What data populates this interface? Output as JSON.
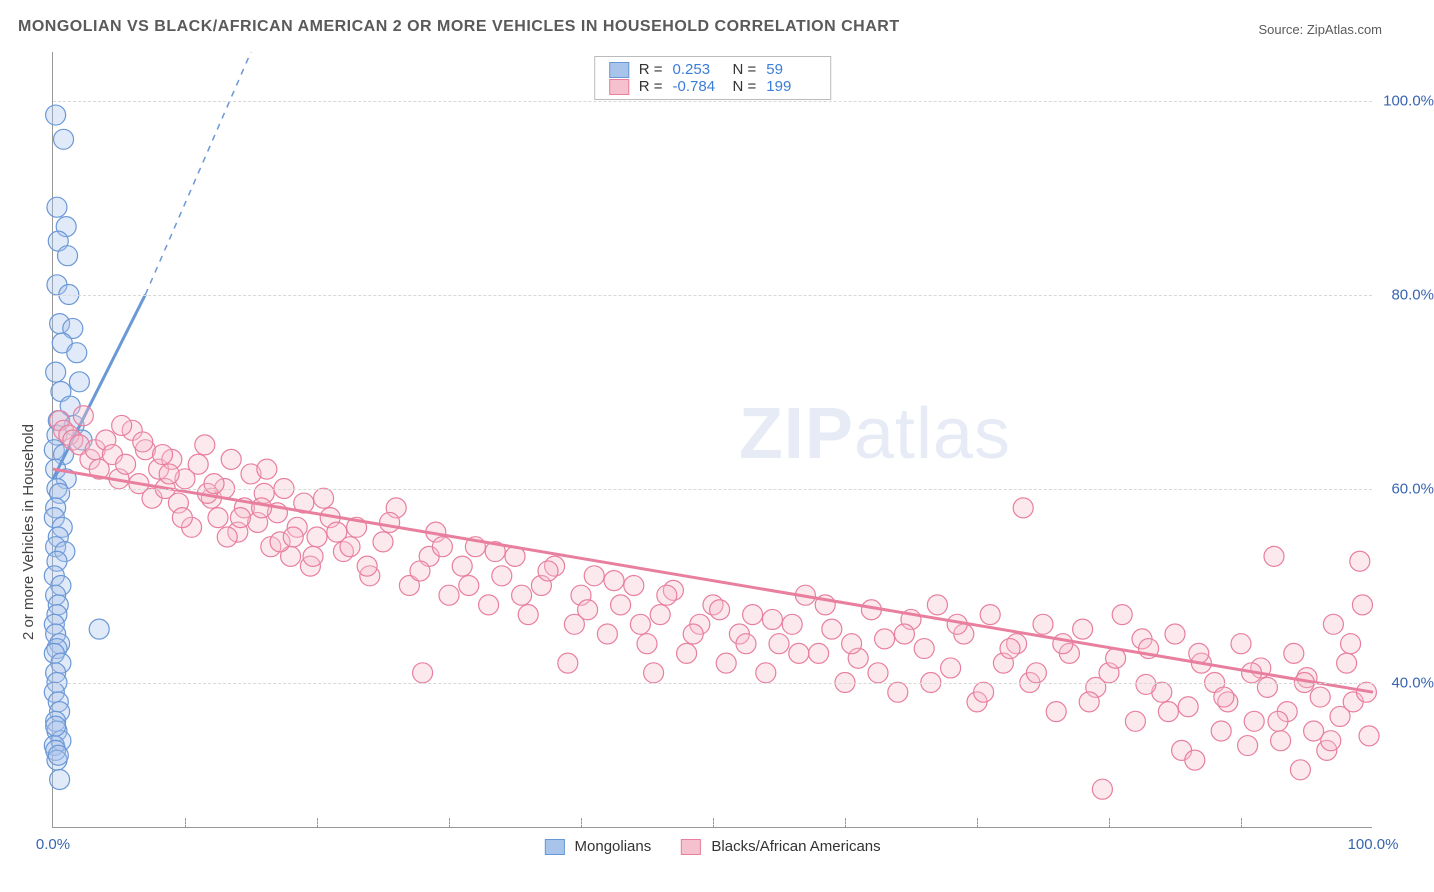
{
  "title": "MONGOLIAN VS BLACK/AFRICAN AMERICAN 2 OR MORE VEHICLES IN HOUSEHOLD CORRELATION CHART",
  "source": "Source: ZipAtlas.com",
  "ylabel": "2 or more Vehicles in Household",
  "watermark": {
    "bold": "ZIP",
    "thin": "atlas"
  },
  "chart": {
    "type": "scatter",
    "background_color": "#ffffff",
    "grid_color": "#d8d8d8",
    "axis_color": "#999999",
    "xlim": [
      0,
      100
    ],
    "ylim": [
      25,
      105
    ],
    "ytick_labels": [
      "40.0%",
      "60.0%",
      "80.0%",
      "100.0%"
    ],
    "ytick_values": [
      40,
      60,
      80,
      100
    ],
    "xtick_labels": [
      "0.0%",
      "100.0%"
    ],
    "xtick_values": [
      0,
      100
    ],
    "xtick_minor": [
      10,
      20,
      30,
      40,
      50,
      60,
      70,
      80,
      90
    ],
    "label_color": "#3864b0",
    "label_fontsize": 15,
    "title_fontsize": 16,
    "marker_radius": 10,
    "marker_opacity": 0.35,
    "series": [
      {
        "name": "Mongolians",
        "color_fill": "#a9c4ea",
        "color_stroke": "#6a98d6",
        "R": "0.253",
        "N": "59",
        "trend": {
          "x1": 0,
          "y1": 61,
          "x2": 7,
          "y2": 80,
          "dash_to_x": 15,
          "dash_to_y": 105
        },
        "points": [
          [
            0.2,
            98.5
          ],
          [
            0.8,
            96
          ],
          [
            0.3,
            89
          ],
          [
            1.0,
            87
          ],
          [
            0.4,
            85.5
          ],
          [
            1.1,
            84
          ],
          [
            0.3,
            81
          ],
          [
            1.2,
            80
          ],
          [
            0.5,
            77
          ],
          [
            1.5,
            76.5
          ],
          [
            0.7,
            75
          ],
          [
            1.8,
            74
          ],
          [
            0.2,
            72
          ],
          [
            2.0,
            71
          ],
          [
            0.6,
            70
          ],
          [
            1.3,
            68.5
          ],
          [
            0.4,
            67
          ],
          [
            1.6,
            66.5
          ],
          [
            0.3,
            65.5
          ],
          [
            2.2,
            65
          ],
          [
            0.1,
            64
          ],
          [
            0.8,
            63.5
          ],
          [
            0.2,
            62
          ],
          [
            1.0,
            61
          ],
          [
            0.3,
            60
          ],
          [
            0.5,
            59.5
          ],
          [
            0.2,
            58
          ],
          [
            0.1,
            57
          ],
          [
            0.7,
            56
          ],
          [
            0.4,
            55
          ],
          [
            0.2,
            54
          ],
          [
            0.9,
            53.5
          ],
          [
            0.3,
            52.5
          ],
          [
            0.1,
            51
          ],
          [
            0.6,
            50
          ],
          [
            0.2,
            49
          ],
          [
            0.4,
            48
          ],
          [
            0.3,
            47
          ],
          [
            0.1,
            46
          ],
          [
            3.5,
            45.5
          ],
          [
            0.2,
            45
          ],
          [
            0.5,
            44
          ],
          [
            0.3,
            43.5
          ],
          [
            0.1,
            43
          ],
          [
            0.6,
            42
          ],
          [
            0.2,
            41
          ],
          [
            0.3,
            40
          ],
          [
            0.1,
            39
          ],
          [
            0.4,
            38
          ],
          [
            0.5,
            37
          ],
          [
            0.2,
            36
          ],
          [
            0.3,
            35
          ],
          [
            0.6,
            34
          ],
          [
            0.1,
            33.5
          ],
          [
            0.2,
            33
          ],
          [
            0.3,
            32
          ],
          [
            0.5,
            30
          ],
          [
            0.2,
            35.5
          ],
          [
            0.4,
            32.5
          ]
        ]
      },
      {
        "name": "Blacks/African Americans",
        "color_fill": "#f6c1cf",
        "color_stroke": "#e87f9e",
        "R": "-0.784",
        "N": "199",
        "trend": {
          "x1": 0,
          "y1": 62,
          "x2": 100,
          "y2": 39
        },
        "points": [
          [
            0.5,
            67
          ],
          [
            0.8,
            66
          ],
          [
            1.2,
            65.5
          ],
          [
            1.5,
            65
          ],
          [
            2,
            64.5
          ],
          [
            2.3,
            67.5
          ],
          [
            2.8,
            63
          ],
          [
            3.2,
            64
          ],
          [
            3.5,
            62
          ],
          [
            4,
            65
          ],
          [
            4.5,
            63.5
          ],
          [
            5,
            61
          ],
          [
            5.5,
            62.5
          ],
          [
            6,
            66
          ],
          [
            6.5,
            60.5
          ],
          [
            7,
            64
          ],
          [
            7.5,
            59
          ],
          [
            8,
            62
          ],
          [
            8.5,
            60
          ],
          [
            9,
            63
          ],
          [
            9.5,
            58.5
          ],
          [
            10,
            61
          ],
          [
            10.5,
            56
          ],
          [
            11,
            62.5
          ],
          [
            11.5,
            64.5
          ],
          [
            12,
            59
          ],
          [
            12.5,
            57
          ],
          [
            13,
            60
          ],
          [
            13.5,
            63
          ],
          [
            14,
            55.5
          ],
          [
            14.5,
            58
          ],
          [
            15,
            61.5
          ],
          [
            15.5,
            56.5
          ],
          [
            16,
            59.5
          ],
          [
            16.5,
            54
          ],
          [
            17,
            57.5
          ],
          [
            17.5,
            60
          ],
          [
            18,
            53
          ],
          [
            18.5,
            56
          ],
          [
            19,
            58.5
          ],
          [
            19.5,
            52
          ],
          [
            20,
            55
          ],
          [
            21,
            57
          ],
          [
            22,
            53.5
          ],
          [
            23,
            56
          ],
          [
            24,
            51
          ],
          [
            25,
            54.5
          ],
          [
            26,
            58
          ],
          [
            27,
            50
          ],
          [
            28,
            41
          ],
          [
            28.5,
            53
          ],
          [
            29,
            55.5
          ],
          [
            30,
            49
          ],
          [
            31,
            52
          ],
          [
            32,
            54
          ],
          [
            33,
            48
          ],
          [
            34,
            51
          ],
          [
            35,
            53
          ],
          [
            36,
            47
          ],
          [
            37,
            50
          ],
          [
            38,
            52
          ],
          [
            39,
            42
          ],
          [
            39.5,
            46
          ],
          [
            40,
            49
          ],
          [
            41,
            51
          ],
          [
            42,
            45
          ],
          [
            43,
            48
          ],
          [
            44,
            50
          ],
          [
            45,
            44
          ],
          [
            45.5,
            41
          ],
          [
            46,
            47
          ],
          [
            47,
            49.5
          ],
          [
            48,
            43
          ],
          [
            49,
            46
          ],
          [
            50,
            48
          ],
          [
            51,
            42
          ],
          [
            52,
            45
          ],
          [
            53,
            47
          ],
          [
            54,
            41
          ],
          [
            55,
            44
          ],
          [
            56,
            46
          ],
          [
            57,
            49
          ],
          [
            58,
            43
          ],
          [
            59,
            45.5
          ],
          [
            60,
            40
          ],
          [
            61,
            42.5
          ],
          [
            62,
            47.5
          ],
          [
            63,
            44.5
          ],
          [
            64,
            39
          ],
          [
            65,
            46.5
          ],
          [
            66,
            43.5
          ],
          [
            67,
            48
          ],
          [
            68,
            41.5
          ],
          [
            69,
            45
          ],
          [
            70,
            38
          ],
          [
            71,
            47
          ],
          [
            72,
            42
          ],
          [
            73,
            44
          ],
          [
            73.5,
            58
          ],
          [
            74,
            40
          ],
          [
            75,
            46
          ],
          [
            76,
            37
          ],
          [
            77,
            43
          ],
          [
            78,
            45.5
          ],
          [
            79,
            39.5
          ],
          [
            80,
            41
          ],
          [
            81,
            47
          ],
          [
            82,
            36
          ],
          [
            82.5,
            44.5
          ],
          [
            83,
            43.5
          ],
          [
            84,
            39
          ],
          [
            85,
            45
          ],
          [
            85.5,
            33
          ],
          [
            86,
            37.5
          ],
          [
            86.5,
            32
          ],
          [
            87,
            42
          ],
          [
            88,
            40
          ],
          [
            88.5,
            35
          ],
          [
            89,
            38
          ],
          [
            90,
            44
          ],
          [
            90.5,
            33.5
          ],
          [
            91,
            36
          ],
          [
            91.5,
            41.5
          ],
          [
            92,
            39.5
          ],
          [
            92.5,
            53
          ],
          [
            93,
            34
          ],
          [
            93.5,
            37
          ],
          [
            94,
            43
          ],
          [
            94.5,
            31
          ],
          [
            95,
            40.5
          ],
          [
            95.5,
            35
          ],
          [
            96,
            38.5
          ],
          [
            96.5,
            33
          ],
          [
            97,
            46
          ],
          [
            97.5,
            36.5
          ],
          [
            98,
            42
          ],
          [
            98.5,
            38
          ],
          [
            99,
            52.5
          ],
          [
            99.2,
            48
          ],
          [
            99.5,
            39
          ],
          [
            99.7,
            34.5
          ],
          [
            8.3,
            63.5
          ],
          [
            9.8,
            57
          ],
          [
            11.7,
            59.5
          ],
          [
            13.2,
            55
          ],
          [
            15.8,
            58
          ],
          [
            17.2,
            54.5
          ],
          [
            19.7,
            53
          ],
          [
            21.5,
            55.5
          ],
          [
            23.8,
            52
          ],
          [
            25.5,
            56.5
          ],
          [
            27.8,
            51.5
          ],
          [
            29.5,
            54
          ],
          [
            31.5,
            50
          ],
          [
            33.5,
            53.5
          ],
          [
            35.5,
            49
          ],
          [
            37.5,
            51.5
          ],
          [
            40.5,
            47.5
          ],
          [
            42.5,
            50.5
          ],
          [
            44.5,
            46
          ],
          [
            46.5,
            49
          ],
          [
            48.5,
            45
          ],
          [
            50.5,
            47.5
          ],
          [
            52.5,
            44
          ],
          [
            54.5,
            46.5
          ],
          [
            56.5,
            43
          ],
          [
            58.5,
            48
          ],
          [
            60.5,
            44
          ],
          [
            62.5,
            41
          ],
          [
            64.5,
            45
          ],
          [
            66.5,
            40
          ],
          [
            68.5,
            46
          ],
          [
            70.5,
            39
          ],
          [
            72.5,
            43.5
          ],
          [
            74.5,
            41
          ],
          [
            76.5,
            44
          ],
          [
            78.5,
            38
          ],
          [
            80.5,
            42.5
          ],
          [
            82.8,
            39.8
          ],
          [
            84.5,
            37
          ],
          [
            86.8,
            43
          ],
          [
            88.7,
            38.5
          ],
          [
            90.8,
            41
          ],
          [
            92.8,
            36
          ],
          [
            94.8,
            40
          ],
          [
            96.8,
            34
          ],
          [
            98.3,
            44
          ],
          [
            79.5,
            29
          ],
          [
            5.2,
            66.5
          ],
          [
            6.8,
            64.8
          ],
          [
            8.8,
            61.5
          ],
          [
            12.2,
            60.5
          ],
          [
            14.2,
            57
          ],
          [
            16.2,
            62
          ],
          [
            18.2,
            55
          ],
          [
            20.5,
            59
          ],
          [
            22.5,
            54
          ]
        ]
      }
    ]
  },
  "legend_bottom": {
    "items": [
      {
        "label": "Mongolians"
      },
      {
        "label": "Blacks/African Americans"
      }
    ]
  }
}
